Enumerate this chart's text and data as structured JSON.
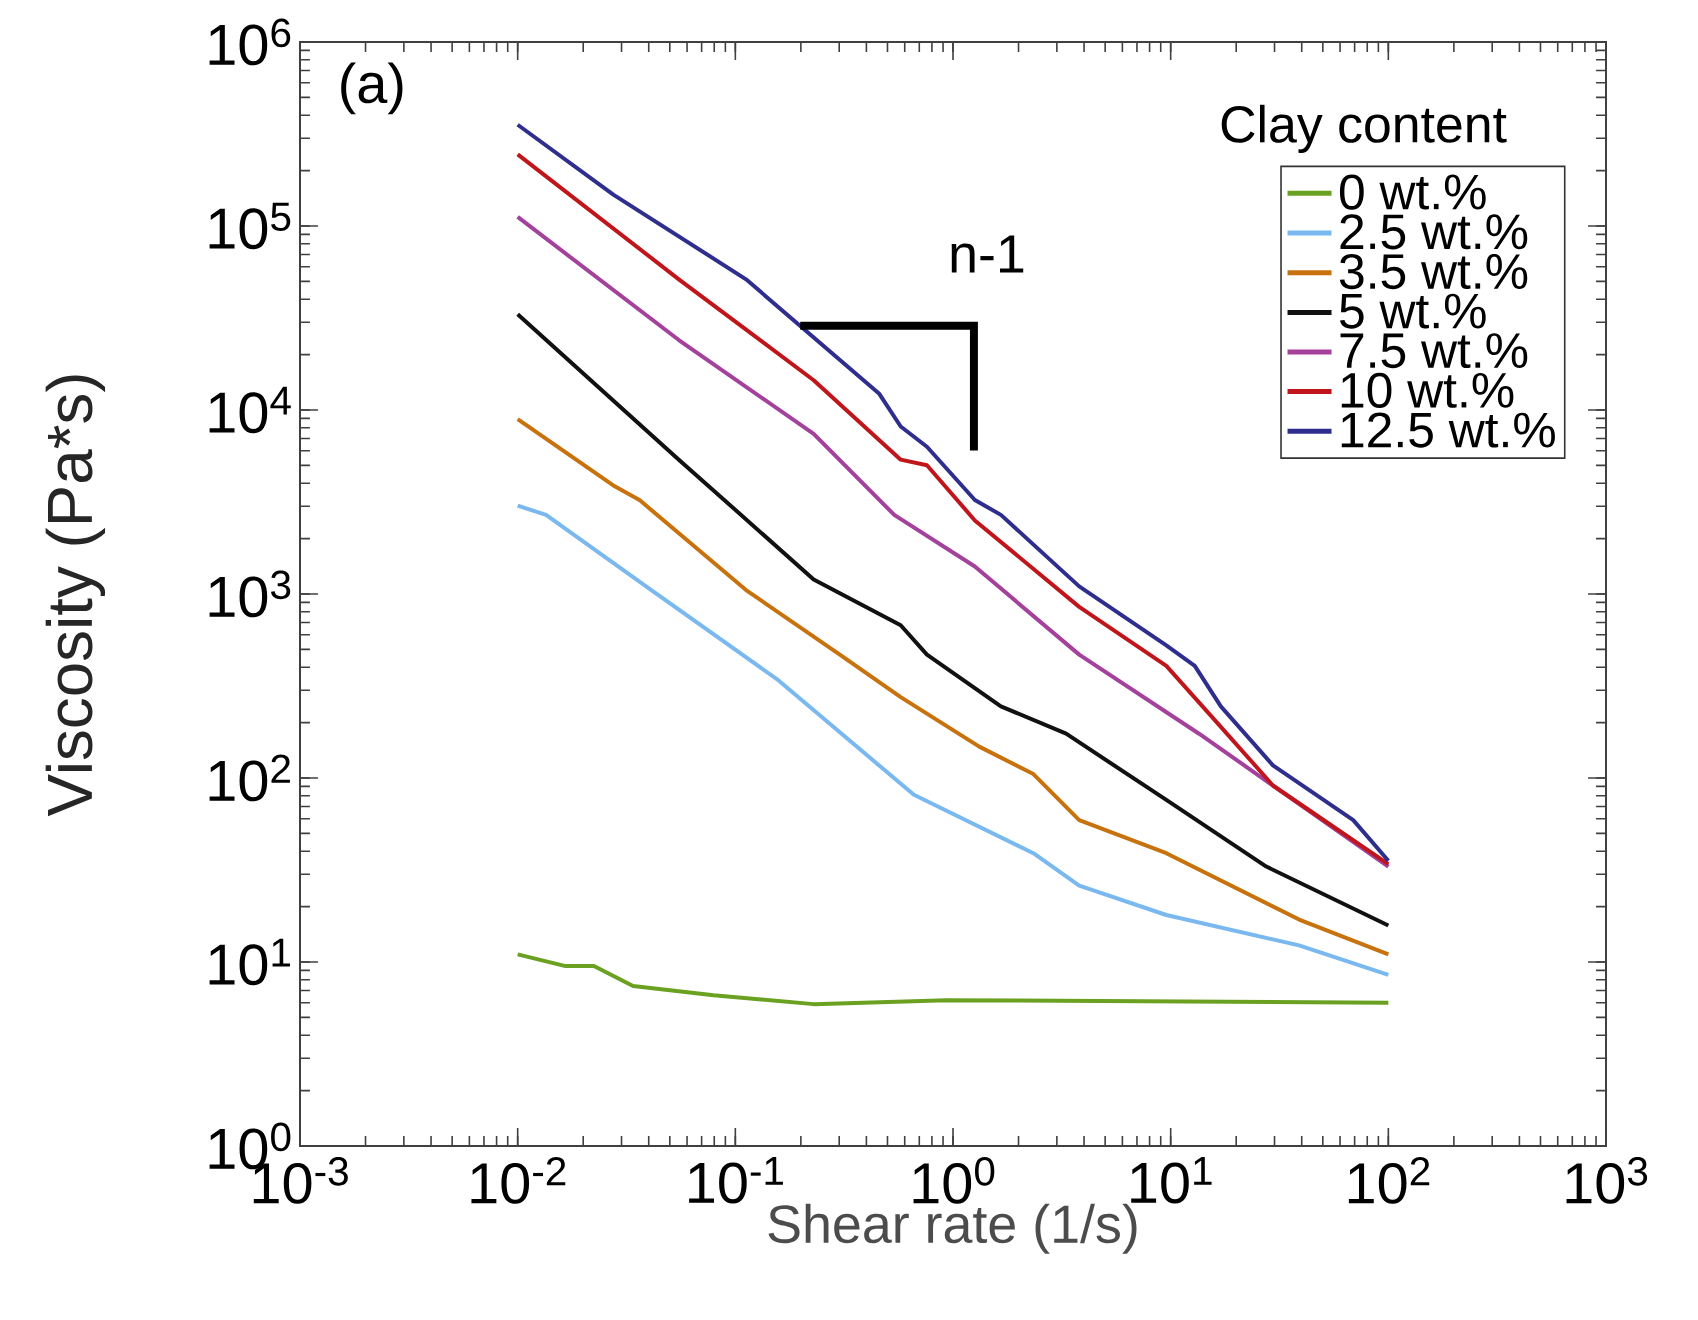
{
  "chart_data": {
    "type": "line",
    "xlabel": "Shear rate (1/s)",
    "ylabel": "Viscosity (Pa*s)",
    "legend_title": "Clay content",
    "log": "xy",
    "legend": "top right",
    "grid": false,
    "marker": "none",
    "line_style": "solid",
    "xlim": [
      0.001,
      1000
    ],
    "ylim": [
      1,
      1000000
    ],
    "xticks": [
      {
        "value": 0.001,
        "label": "10$^{-3}$"
      },
      {
        "value": 0.01,
        "label": "10$^{-2}$"
      },
      {
        "value": 0.1,
        "label": "10$^{-1}$"
      },
      {
        "value": 1,
        "label": "10$^{0}$"
      },
      {
        "value": 10,
        "label": "10$^{1}$"
      },
      {
        "value": 100,
        "label": "10$^{2}$"
      },
      {
        "value": 1000,
        "label": "10$^{3}$"
      }
    ],
    "yticks": [
      {
        "value": 1,
        "label": "10$^{0}$"
      },
      {
        "value": 10,
        "label": "10$^{1}$"
      },
      {
        "value": 100,
        "label": "10$^{2}$"
      },
      {
        "value": 1000,
        "label": "10$^{3}$"
      },
      {
        "value": 10000,
        "label": "10$^{4}$"
      },
      {
        "value": 100000,
        "label": "10$^{5}$"
      },
      {
        "value": 1000000,
        "label": "10$^{6}$"
      }
    ],
    "annotations": [
      "(a)",
      "n-1"
    ],
    "series": [
      {
        "name": "0 wt.%",
        "color": "#6aa121",
        "x": [
          0.01,
          0.0166,
          0.0224,
          0.0339,
          0.0794,
          0.229,
          0.933,
          100
        ],
        "values": [
          11,
          9.5,
          9.5,
          7.4,
          6.6,
          5.9,
          6.2,
          6.0
        ]
      },
      {
        "name": "2.5 wt.%",
        "color": "#7ab8f0",
        "x": [
          0.01,
          0.0135,
          0.0389,
          0.158,
          0.661,
          2.34,
          3.8,
          9.55,
          38.9,
          100
        ],
        "values": [
          3020,
          2690,
          1100,
          339,
          81,
          39,
          26,
          18,
          12.3,
          8.5
        ]
      },
      {
        "name": "3.5 wt.%",
        "color": "#c8720e",
        "x": [
          0.01,
          0.0275,
          0.0363,
          0.112,
          0.302,
          0.575,
          1.32,
          2.34,
          3.8,
          9.55,
          38.9,
          100
        ],
        "values": [
          8910,
          3890,
          3240,
          1050,
          468,
          275,
          148,
          105,
          59,
          39,
          17,
          11
        ]
      },
      {
        "name": "5 wt.%",
        "color": "#111111",
        "x": [
          0.01,
          0.055,
          0.229,
          0.575,
          0.759,
          1.66,
          3.31,
          9.55,
          27.5,
          100
        ],
        "values": [
          33100,
          5370,
          1200,
          676,
          468,
          245,
          174,
          76,
          33,
          15.8
        ]
      },
      {
        "name": "7.5 wt.%",
        "color": "#a3419c",
        "x": [
          0.01,
          0.055,
          0.229,
          0.537,
          1.26,
          3.8,
          13.5,
          29.5,
          100
        ],
        "values": [
          112000,
          24000,
          7410,
          2690,
          1410,
          468,
          174,
          91,
          33
        ]
      },
      {
        "name": "10 wt.%",
        "color": "#c0161b",
        "x": [
          0.01,
          0.055,
          0.229,
          0.575,
          0.759,
          1.26,
          3.8,
          9.55,
          15.8,
          29.5,
          100
        ],
        "values": [
          245000,
          51300,
          14500,
          5370,
          5010,
          2510,
          851,
          407,
          209,
          91,
          34
        ]
      },
      {
        "name": "12.5 wt.%",
        "color": "#2e2e8f",
        "x": [
          0.01,
          0.0275,
          0.112,
          0.457,
          0.575,
          0.759,
          1.26,
          1.66,
          3.8,
          9.55,
          12.9,
          17,
          29.5,
          69,
          100
        ],
        "values": [
          355000,
          148000,
          51300,
          12300,
          8130,
          6310,
          3240,
          2690,
          1100,
          525,
          407,
          245,
          117,
          59,
          35.5
        ]
      }
    ]
  }
}
